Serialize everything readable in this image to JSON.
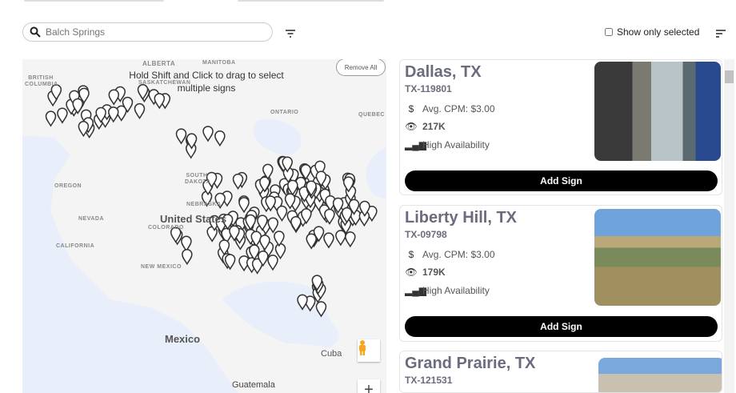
{
  "search": {
    "value": "",
    "placeholder": "Balch Springs"
  },
  "show_only_selected": {
    "label": "Show only selected",
    "checked": false
  },
  "map": {
    "hint": "Hold Shift and Click to drag to select multiple signs",
    "remove_all": "Remove All",
    "labels": {
      "alberta": "ALBERTA",
      "manitoba": "MANITOBA",
      "british_columbia": "BRITISH COLUMBIA",
      "saskatchewan": "SASKATCHEWAN",
      "ontario": "ONTARIO",
      "quebec": "QUEBEC",
      "oregon": "OREGON",
      "nevada": "NEVADA",
      "california": "CALIFORNIA",
      "south_dakota": "SOUTH DAKOTA",
      "nebraska": "NEBRASKA",
      "colorado": "COLORADO",
      "new_mexico": "NEW MEXICO",
      "united_states": "United States",
      "mexico": "Mexico",
      "cuba": "Cuba",
      "guatemala": "Guatemala"
    },
    "zoom_in": "+"
  },
  "signs": [
    {
      "title": "Dallas, TX",
      "code": "TX-119801",
      "cpm": "Avg. CPM: $3.00",
      "impressions": "217K",
      "availability": "High Availability",
      "button": "Add Sign"
    },
    {
      "title": "Liberty Hill, TX",
      "code": "TX-09798",
      "cpm": "Avg. CPM: $3.00",
      "impressions": "179K",
      "availability": "High Availability",
      "button": "Add Sign"
    },
    {
      "title": "Grand Prairie, TX",
      "code": "TX-121531"
    }
  ],
  "colors": {
    "button": "#000000",
    "title": "#6b6b7e",
    "water": "#e8eefa",
    "land": "#f4f4f4"
  }
}
